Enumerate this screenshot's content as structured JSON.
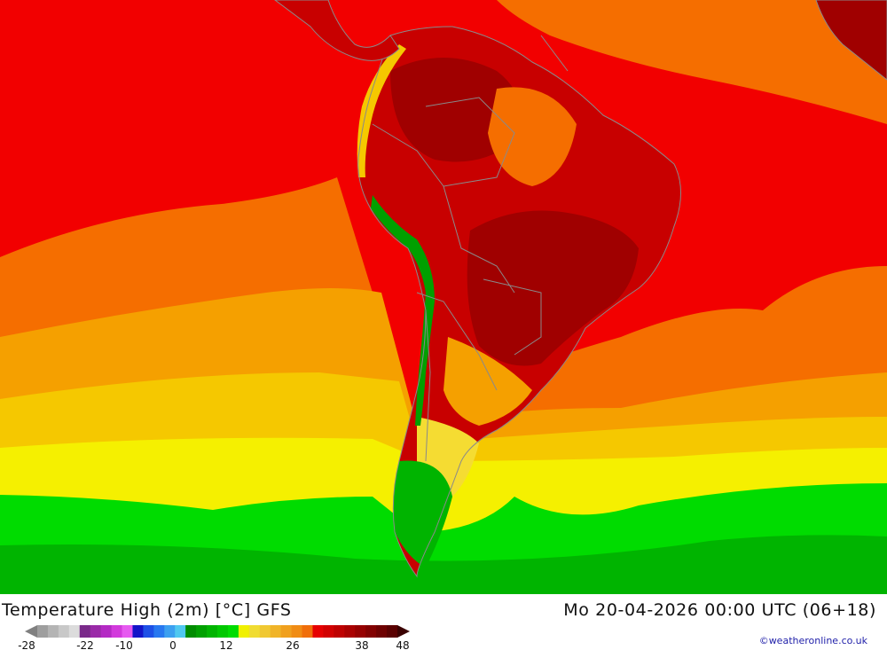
{
  "title": {
    "left": "Temperature High (2m) [°C] GFS",
    "right": "Mo 20-04-2026 00:00 UTC (06+18)"
  },
  "credit": "©weatheronline.co.uk",
  "legend": {
    "ticks": [
      "-28",
      "-22",
      "-10",
      "0",
      "12",
      "26",
      "38",
      "48"
    ],
    "tick_values": [
      -28,
      -22,
      -10,
      0,
      12,
      26,
      38,
      48
    ],
    "colors": [
      "#9e9e9e",
      "#b4b4b4",
      "#c8c8c8",
      "#dcdcdc",
      "#7a2a8a",
      "#9a2aa8",
      "#b42ac4",
      "#d23adc",
      "#e65af0",
      "#1414c8",
      "#1e50e6",
      "#2878f0",
      "#3ca0f0",
      "#50c8f0",
      "#008c00",
      "#00a000",
      "#00b400",
      "#00c800",
      "#00dc00",
      "#f0f000",
      "#f0dc32",
      "#f0c832",
      "#f0b428",
      "#f0a01e",
      "#f08c14",
      "#f06e0a",
      "#e60000",
      "#d20000",
      "#be0000",
      "#aa0000",
      "#960000",
      "#820000",
      "#6e0000",
      "#5a0000"
    ]
  },
  "map": {
    "colors": {
      "ocean_hot": "#f20000",
      "ocean_warm": "#f56e00",
      "ocean_mild": "#f5a000",
      "ocean_cool": "#f5c800",
      "ocean_yellow": "#f5f000",
      "ocean_green": "#00dc00",
      "ocean_dark_green": "#00b400",
      "land_hot": "#c80000",
      "land_very_hot": "#a00000",
      "andes_cold": "#00a000",
      "border": "#8a8a8a"
    }
  }
}
